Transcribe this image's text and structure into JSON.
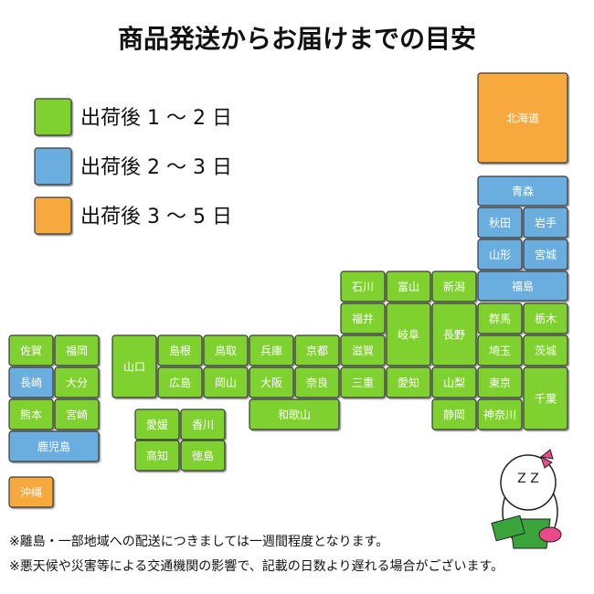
{
  "title": "商品発送からお届けまでの目安",
  "legend": [
    {
      "label": "出荷後 1 〜 2 日",
      "color": "#7ed12d"
    },
    {
      "label": "出荷後 2 〜 3 日",
      "color": "#6aaedf"
    },
    {
      "label": "出荷後 3 〜 5 日",
      "color": "#f7a93d"
    }
  ],
  "prefectures": [
    {
      "name": "北海道",
      "group": 2
    },
    {
      "name": "青森",
      "group": 1
    },
    {
      "name": "秋田",
      "group": 1
    },
    {
      "name": "岩手",
      "group": 1
    },
    {
      "name": "山形",
      "group": 1
    },
    {
      "name": "宮城",
      "group": 1
    },
    {
      "name": "福島",
      "group": 1
    },
    {
      "name": "石川",
      "group": 0
    },
    {
      "name": "富山",
      "group": 0
    },
    {
      "name": "新潟",
      "group": 0
    },
    {
      "name": "福井",
      "group": 0
    },
    {
      "name": "岐阜",
      "group": 0
    },
    {
      "name": "長野",
      "group": 0
    },
    {
      "name": "群馬",
      "group": 0
    },
    {
      "name": "栃木",
      "group": 0
    },
    {
      "name": "滋賀",
      "group": 0
    },
    {
      "name": "埼玉",
      "group": 0
    },
    {
      "name": "茨城",
      "group": 0
    },
    {
      "name": "三重",
      "group": 0
    },
    {
      "name": "愛知",
      "group": 0
    },
    {
      "name": "山梨",
      "group": 0
    },
    {
      "name": "東京",
      "group": 0
    },
    {
      "name": "千葉",
      "group": 0
    },
    {
      "name": "静岡",
      "group": 0
    },
    {
      "name": "神奈川",
      "group": 0
    },
    {
      "name": "山口",
      "group": 0
    },
    {
      "name": "島根",
      "group": 0
    },
    {
      "name": "鳥取",
      "group": 0
    },
    {
      "name": "兵庫",
      "group": 0
    },
    {
      "name": "京都",
      "group": 0
    },
    {
      "name": "広島",
      "group": 0
    },
    {
      "name": "岡山",
      "group": 0
    },
    {
      "name": "大阪",
      "group": 0
    },
    {
      "name": "奈良",
      "group": 0
    },
    {
      "name": "和歌山",
      "group": 0
    },
    {
      "name": "愛媛",
      "group": 0
    },
    {
      "name": "香川",
      "group": 0
    },
    {
      "name": "高知",
      "group": 0
    },
    {
      "name": "徳島",
      "group": 0
    },
    {
      "name": "佐賀",
      "group": 0
    },
    {
      "name": "福岡",
      "group": 0
    },
    {
      "name": "長崎",
      "group": 1
    },
    {
      "name": "大分",
      "group": 0
    },
    {
      "name": "熊本",
      "group": 0
    },
    {
      "name": "宮崎",
      "group": 0
    },
    {
      "name": "鹿児島",
      "group": 1
    },
    {
      "name": "沖縄",
      "group": 2
    }
  ],
  "mascot_text": "Z Z",
  "notes": [
    "※離島・一部地域への配送につきましては一週間程度となります。",
    "※悪天候や災害等による交通機関の影響で、記載の日数より遅れる場合がございます。"
  ]
}
